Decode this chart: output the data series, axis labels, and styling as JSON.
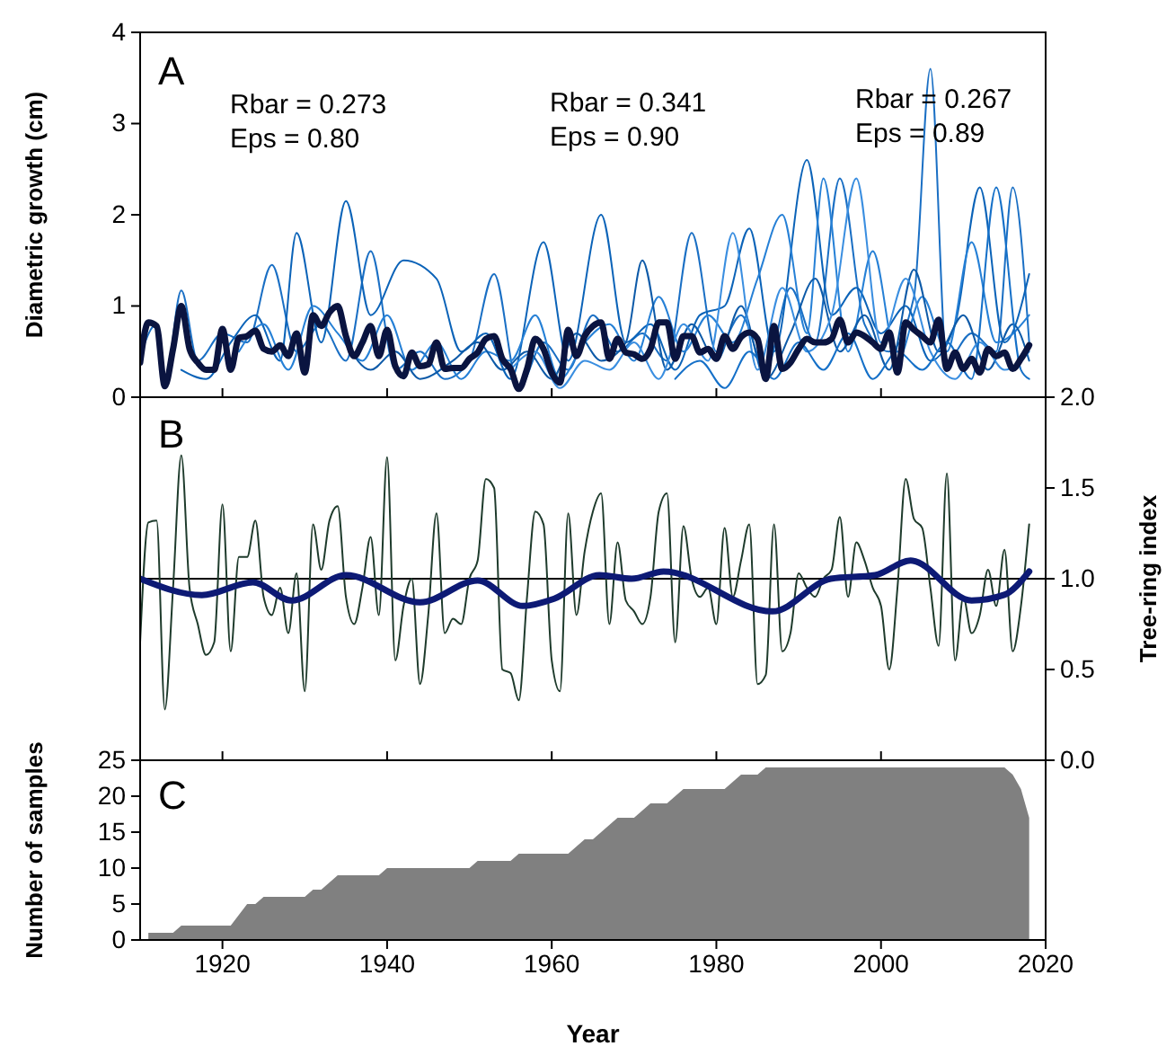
{
  "chart_data": [
    {
      "type": "line",
      "ylabel": "Diametric growth (cm)",
      "xlim": [
        1910,
        2020
      ],
      "ylim": [
        0,
        4
      ],
      "xticks": [
        1920,
        1940,
        1960,
        1980,
        2000,
        2020
      ],
      "yticks": [
        0,
        1,
        2,
        3,
        4
      ],
      "tick_labels": "y",
      "annotations": [
        "A",
        "Rbar = 0.273\nEps = 0.80",
        "Rbar = 0.341\nEps = 0.90",
        "Rbar = 0.267\nEps = 0.89"
      ],
      "x": [
        1910,
        1911,
        1912,
        1913,
        1914,
        1915,
        1916,
        1917,
        1918,
        1919,
        1920,
        1921,
        1922,
        1923,
        1924,
        1925,
        1926,
        1927,
        1928,
        1929,
        1930,
        1931,
        1932,
        1933,
        1934,
        1935,
        1936,
        1937,
        1938,
        1939,
        1940,
        1941,
        1942,
        1943,
        1944,
        1945,
        1946,
        1947,
        1948,
        1949,
        1950,
        1951,
        1952,
        1953,
        1954,
        1955,
        1956,
        1957,
        1958,
        1959,
        1960,
        1961,
        1962,
        1963,
        1964,
        1965,
        1966,
        1967,
        1968,
        1969,
        1970,
        1971,
        1972,
        1973,
        1974,
        1975,
        1976,
        1977,
        1978,
        1979,
        1980,
        1981,
        1982,
        1983,
        1984,
        1985,
        1986,
        1987,
        1988,
        1989,
        1990,
        1991,
        1992,
        1993,
        1994,
        1995,
        1996,
        1997,
        1998,
        1999,
        2000,
        2001,
        2002,
        2003,
        2004,
        2005,
        2006,
        2007,
        2008,
        2009,
        2010,
        2011,
        2012,
        2013,
        2014,
        2015,
        2016,
        2017,
        2018
      ],
      "series": [
        {
          "color": "#1a6fc4",
          "x": [
            1910,
            1912,
            1913,
            1915,
            1917,
            1920,
            1923,
            1926,
            1929,
            1932,
            1935,
            1938,
            1941,
            1944,
            1947,
            1950,
            1953,
            1956,
            1959,
            1962,
            1965,
            1968,
            1971,
            1974,
            1977,
            1980,
            1983,
            1986,
            1989,
            1992,
            1995,
            1998,
            2001,
            2004,
            2006,
            2008,
            2011,
            2014,
            2016,
            2018
          ],
          "values": [
            0.45,
            0.8,
            0.15,
            1.17,
            0.4,
            0.7,
            0.6,
            1.45,
            0.5,
            0.8,
            0.4,
            1.6,
            0.3,
            0.5,
            0.2,
            0.4,
            1.35,
            0.1,
            0.6,
            0.3,
            0.9,
            0.5,
            0.7,
            0.4,
            1.8,
            0.5,
            0.9,
            0.3,
            1.2,
            0.6,
            2.4,
            0.8,
            0.5,
            1.1,
            3.6,
            0.4,
            0.7,
            0.5,
            2.3,
            0.6
          ]
        },
        {
          "color": "#0b63b8",
          "x": [
            1915,
            1918,
            1921,
            1924,
            1927,
            1929,
            1932,
            1935,
            1938,
            1942,
            1946,
            1949,
            1952,
            1955,
            1959,
            1962,
            1966,
            1969,
            1972,
            1975,
            1978,
            1981,
            1984,
            1987,
            1991,
            1994,
            1997,
            2000,
            2003,
            2006,
            2009,
            2012,
            2015,
            2018
          ],
          "values": [
            0.3,
            0.2,
            0.6,
            0.9,
            0.4,
            1.8,
            0.6,
            2.15,
            0.9,
            1.5,
            1.3,
            0.5,
            0.7,
            0.2,
            1.7,
            0.4,
            2.0,
            0.6,
            0.8,
            0.3,
            0.9,
            1.0,
            1.85,
            0.5,
            2.6,
            0.9,
            1.2,
            0.7,
            1.0,
            0.4,
            0.8,
            2.3,
            0.6,
            1.35
          ]
        },
        {
          "color": "#2680d6",
          "x": [
            1922,
            1925,
            1928,
            1931,
            1934,
            1937,
            1940,
            1943,
            1946,
            1949,
            1952,
            1955,
            1958,
            1961,
            1964,
            1967,
            1970,
            1973,
            1976,
            1979,
            1982,
            1985,
            1988,
            1991,
            1993,
            1996,
            1999,
            2002,
            2005,
            2008,
            2011,
            2014,
            2018
          ],
          "values": [
            0.5,
            0.8,
            0.3,
            1.0,
            0.7,
            0.4,
            0.9,
            0.3,
            0.6,
            0.2,
            0.5,
            0.4,
            0.9,
            0.2,
            0.6,
            0.8,
            0.4,
            1.1,
            0.5,
            0.9,
            0.6,
            1.3,
            2.0,
            0.7,
            2.4,
            0.5,
            1.6,
            0.4,
            1.1,
            0.5,
            1.7,
            0.6,
            0.9
          ]
        },
        {
          "color": "#0d5aa8",
          "x": [
            1935,
            1938,
            1941,
            1944,
            1948,
            1951,
            1954,
            1957,
            1960,
            1963,
            1966,
            1969,
            1971,
            1974,
            1977,
            1980,
            1983,
            1986,
            1989,
            1992,
            1995,
            1998,
            2001,
            2004,
            2007,
            2010,
            2013,
            2016,
            2018
          ],
          "values": [
            0.6,
            0.3,
            0.5,
            0.2,
            0.4,
            0.6,
            0.3,
            0.5,
            0.2,
            0.7,
            0.4,
            0.6,
            1.5,
            0.3,
            0.8,
            0.4,
            1.0,
            0.2,
            0.7,
            1.3,
            0.5,
            0.9,
            0.3,
            1.4,
            0.5,
            0.9,
            0.3,
            0.8,
            0.4
          ]
        },
        {
          "color": "#3a8ee0",
          "x": [
            1955,
            1958,
            1961,
            1964,
            1967,
            1970,
            1973,
            1976,
            1979,
            1982,
            1985,
            1988,
            1991,
            1994,
            1997,
            2000,
            2003,
            2006,
            2009,
            2012,
            2015,
            2018
          ],
          "values": [
            0.3,
            0.5,
            0.1,
            0.4,
            0.3,
            0.6,
            0.2,
            0.8,
            0.4,
            1.8,
            0.3,
            1.2,
            0.5,
            0.9,
            2.4,
            0.6,
            1.3,
            0.5,
            0.2,
            0.6,
            0.3,
            0.5
          ]
        },
        {
          "color": "#1570c8",
          "x": [
            1975,
            1978,
            1981,
            1984,
            1987,
            1990,
            1993,
            1996,
            1999,
            2002,
            2005,
            2008,
            2011,
            2014,
            2017,
            2018
          ],
          "values": [
            0.2,
            0.4,
            0.1,
            0.5,
            0.2,
            0.6,
            0.3,
            0.7,
            0.2,
            0.5,
            0.3,
            0.6,
            0.2,
            2.3,
            0.3,
            0.2
          ]
        },
        {
          "color": "#0a1440",
          "values": [
            0.38,
            0.82,
            0.78,
            0.12,
            0.53,
            1.0,
            0.53,
            0.38,
            0.3,
            0.3,
            0.75,
            0.3,
            0.65,
            0.67,
            0.73,
            0.53,
            0.5,
            0.57,
            0.45,
            0.7,
            0.27,
            0.9,
            0.78,
            0.93,
            1.0,
            0.67,
            0.45,
            0.6,
            0.78,
            0.45,
            0.74,
            0.34,
            0.23,
            0.49,
            0.34,
            0.36,
            0.6,
            0.31,
            0.32,
            0.32,
            0.42,
            0.49,
            0.64,
            0.67,
            0.42,
            0.31,
            0.09,
            0.31,
            0.64,
            0.53,
            0.27,
            0.16,
            0.74,
            0.45,
            0.67,
            0.78,
            0.82,
            0.42,
            0.64,
            0.49,
            0.47,
            0.42,
            0.53,
            0.82,
            0.82,
            0.42,
            0.67,
            0.67,
            0.49,
            0.53,
            0.42,
            0.67,
            0.53,
            0.66,
            0.71,
            0.64,
            0.2,
            0.78,
            0.31,
            0.38,
            0.53,
            0.64,
            0.6,
            0.6,
            0.64,
            0.85,
            0.6,
            0.71,
            0.67,
            0.6,
            0.53,
            0.71,
            0.27,
            0.82,
            0.74,
            0.67,
            0.6,
            0.85,
            0.31,
            0.49,
            0.31,
            0.42,
            0.27,
            0.53,
            0.45,
            0.49,
            0.31,
            0.42,
            0.57
          ]
        }
      ]
    },
    {
      "type": "line",
      "ylabel": "Tree-ring index",
      "xlim": [
        1910,
        2020
      ],
      "ylim": [
        0,
        2
      ],
      "xticks": [
        1920,
        1940,
        1960,
        1980,
        2000,
        2020
      ],
      "yticks": [
        {
          "value": 0,
          "label": "0.0"
        },
        {
          "value": 0.5,
          "label": "0.5"
        },
        {
          "value": 1,
          "label": "1.0"
        },
        {
          "value": 1.5,
          "label": "1.5"
        },
        {
          "value": 2,
          "label": "2.0"
        }
      ],
      "tick_labels": "y",
      "annotations": [
        "B"
      ],
      "ref_lines": [
        {
          "axis": "y",
          "value": 1,
          "color": "#000000"
        }
      ],
      "x": [
        1910,
        1911,
        1912,
        1913,
        1914,
        1915,
        1916,
        1917,
        1918,
        1919,
        1920,
        1921,
        1922,
        1923,
        1924,
        1925,
        1926,
        1927,
        1928,
        1929,
        1930,
        1931,
        1932,
        1933,
        1934,
        1935,
        1936,
        1937,
        1938,
        1939,
        1940,
        1941,
        1942,
        1943,
        1944,
        1945,
        1946,
        1947,
        1948,
        1949,
        1950,
        1951,
        1952,
        1953,
        1954,
        1955,
        1956,
        1957,
        1958,
        1959,
        1960,
        1961,
        1962,
        1963,
        1964,
        1965,
        1966,
        1967,
        1968,
        1969,
        1970,
        1971,
        1972,
        1973,
        1974,
        1975,
        1976,
        1977,
        1978,
        1979,
        1980,
        1981,
        1982,
        1983,
        1984,
        1985,
        1986,
        1987,
        1988,
        1989,
        1990,
        1991,
        1992,
        1993,
        1994,
        1995,
        1996,
        1997,
        1998,
        1999,
        2000,
        2001,
        2002,
        2003,
        2004,
        2005,
        2006,
        2007,
        2008,
        2009,
        2010,
        2011,
        2012,
        2013,
        2014,
        2015,
        2016,
        2017,
        2018
      ],
      "series": [
        {
          "color": "#1e3b2c",
          "values": [
            0.65,
            1.31,
            1.32,
            0.28,
            0.95,
            1.68,
            0.95,
            0.75,
            0.58,
            0.65,
            1.41,
            0.6,
            1.12,
            1.12,
            1.32,
            0.9,
            0.8,
            0.95,
            0.7,
            1.03,
            0.38,
            1.3,
            1.05,
            1.32,
            1.4,
            0.9,
            0.75,
            0.95,
            1.23,
            0.8,
            1.67,
            0.55,
            0.85,
            1.0,
            0.42,
            0.8,
            1.36,
            0.7,
            0.78,
            0.75,
            1.0,
            1.1,
            1.55,
            1.5,
            0.5,
            0.48,
            0.33,
            0.9,
            1.37,
            1.3,
            0.55,
            0.38,
            1.36,
            0.8,
            1.15,
            1.37,
            1.47,
            0.75,
            1.2,
            0.88,
            0.82,
            0.75,
            0.9,
            1.37,
            1.47,
            0.65,
            1.29,
            1.0,
            0.9,
            0.95,
            0.75,
            1.28,
            0.9,
            1.1,
            1.3,
            0.42,
            0.47,
            1.3,
            0.6,
            0.7,
            1.03,
            0.95,
            0.9,
            1.0,
            1.05,
            1.34,
            0.9,
            1.2,
            1.1,
            0.95,
            0.85,
            0.5,
            0.95,
            1.55,
            1.33,
            1.28,
            0.95,
            0.63,
            1.58,
            0.55,
            0.9,
            0.7,
            0.8,
            1.05,
            0.85,
            1.16,
            0.6,
            0.85,
            1.3
          ]
        },
        {
          "color": "#0d1a75",
          "x": [
            1910,
            1917.5,
            1923.7,
            1928.4,
            1935,
            1944,
            1951,
            1956.5,
            1960.3,
            1965.8,
            1969.7,
            1973.6,
            1986.8,
            1993.9,
            1999.3,
            2003.6,
            2011,
            2014.9,
            2018
          ],
          "values": [
            1.0,
            0.91,
            0.98,
            0.88,
            1.02,
            0.87,
            0.99,
            0.85,
            0.89,
            1.02,
            1.0,
            1.04,
            0.82,
            1.0,
            1.02,
            1.1,
            0.88,
            0.91,
            1.04
          ]
        }
      ]
    },
    {
      "type": "area",
      "ylabel": "Number of samples",
      "xlabel": "Year",
      "xlim": [
        1910,
        2020
      ],
      "ylim": [
        0,
        25
      ],
      "xticks": [
        1920,
        1940,
        1960,
        1980,
        2000,
        2020
      ],
      "yticks": [
        0,
        5,
        10,
        15,
        20,
        25
      ],
      "color": "#808080",
      "annotations": [
        "C"
      ],
      "x": [
        1911,
        1912,
        1913,
        1914,
        1915,
        1916,
        1917,
        1918,
        1919,
        1920,
        1921,
        1922,
        1923,
        1924,
        1925,
        1926,
        1927,
        1928,
        1929,
        1930,
        1931,
        1932,
        1933,
        1934,
        1935,
        1936,
        1937,
        1938,
        1939,
        1940,
        1941,
        1942,
        1943,
        1944,
        1945,
        1946,
        1947,
        1948,
        1949,
        1950,
        1951,
        1952,
        1953,
        1954,
        1955,
        1956,
        1957,
        1958,
        1959,
        1960,
        1961,
        1962,
        1963,
        1964,
        1965,
        1966,
        1967,
        1968,
        1969,
        1970,
        1971,
        1972,
        1973,
        1974,
        1975,
        1976,
        1977,
        1978,
        1979,
        1980,
        1981,
        1982,
        1983,
        1984,
        1985,
        1986,
        1987,
        1988,
        1989,
        1990,
        1991,
        1992,
        1993,
        1994,
        1995,
        1996,
        1997,
        1998,
        1999,
        2000,
        2001,
        2002,
        2003,
        2004,
        2005,
        2006,
        2007,
        2008,
        2009,
        2010,
        2011,
        2012,
        2013,
        2014,
        2015,
        2016,
        2017,
        2018
      ],
      "values": [
        1,
        1,
        1,
        1,
        2,
        2,
        2,
        2,
        2,
        2,
        2,
        3.5,
        5,
        5,
        6,
        6,
        6,
        6,
        6,
        6,
        7,
        7,
        8,
        9,
        9,
        9,
        9,
        9,
        9,
        10,
        10,
        10,
        10,
        10,
        10,
        10,
        10,
        10,
        10,
        10,
        11,
        11,
        11,
        11,
        11,
        12,
        12,
        12,
        12,
        12,
        12,
        12,
        13,
        14,
        14,
        15,
        16,
        17,
        17,
        17,
        18,
        19,
        19,
        19,
        20,
        21,
        21,
        21,
        21,
        21,
        21,
        22,
        23,
        23,
        23,
        24,
        24,
        24,
        24,
        24,
        24,
        24,
        24,
        24,
        24,
        24,
        24,
        24,
        24,
        24,
        24,
        24,
        24,
        24,
        24,
        24,
        24,
        24,
        24,
        24,
        24,
        24,
        24,
        24,
        24,
        23,
        21,
        17
      ]
    }
  ]
}
